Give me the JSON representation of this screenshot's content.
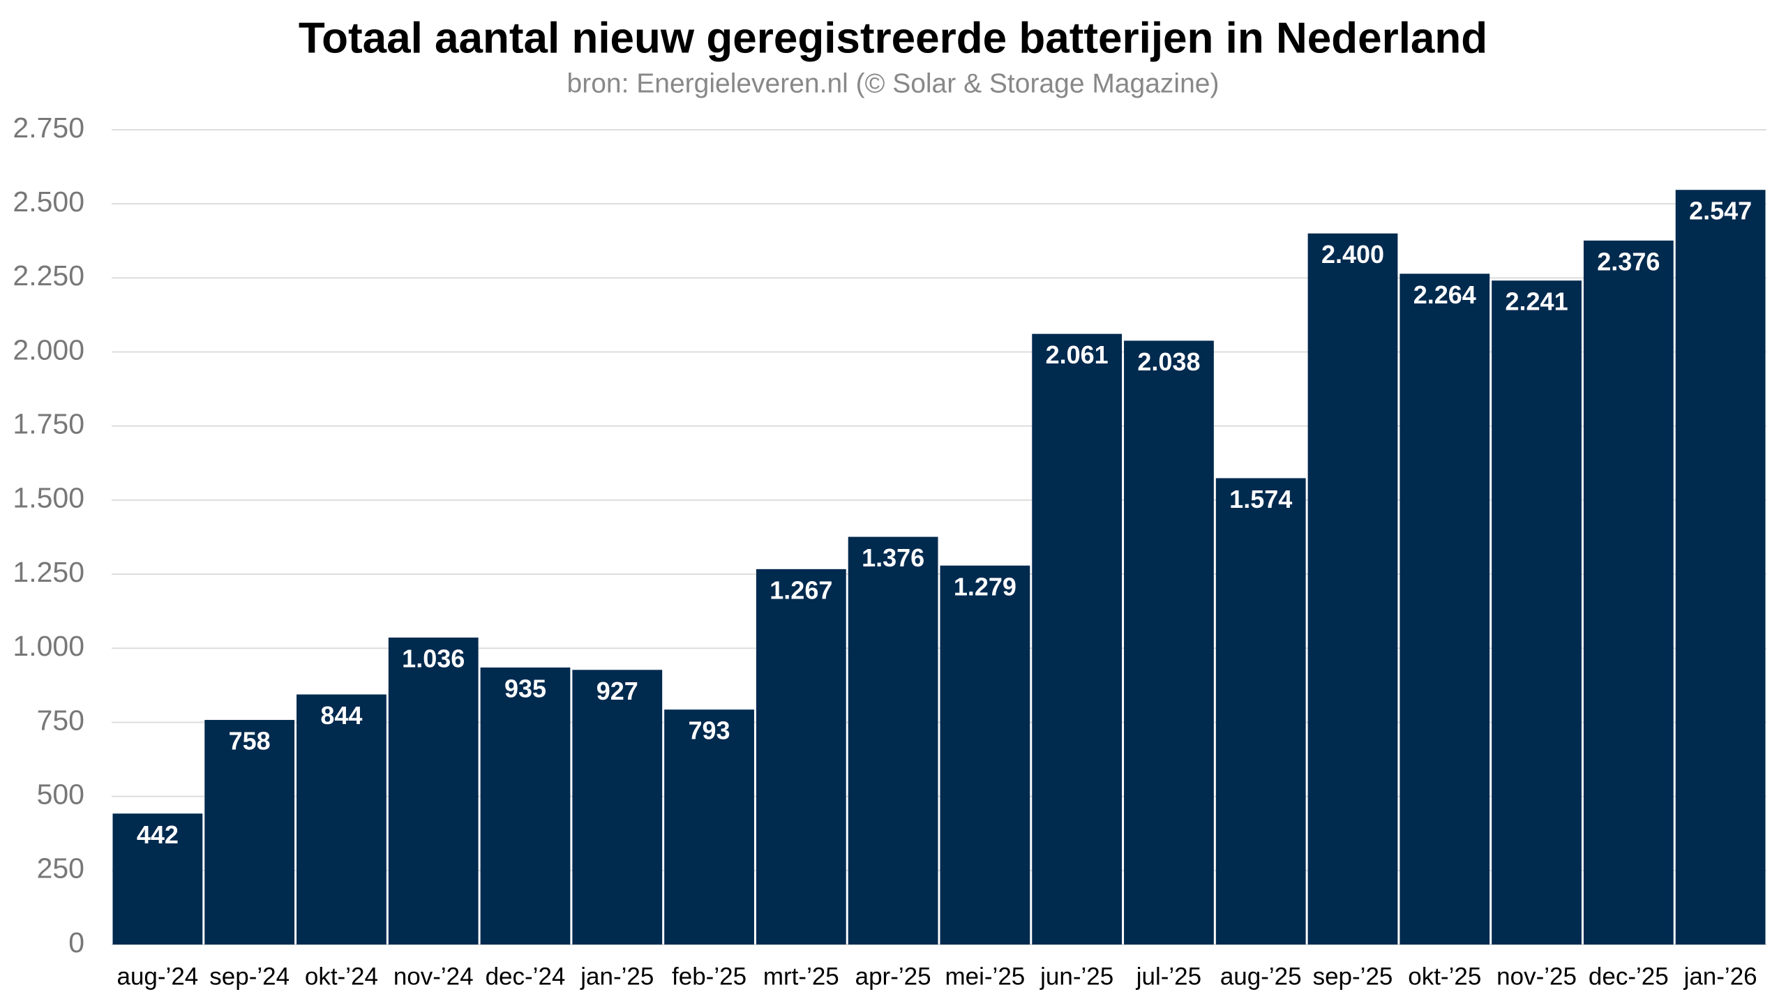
{
  "chart_data": {
    "type": "bar",
    "title": "Totaal aantal nieuw geregistreerde batterijen in Nederland",
    "subtitle": "bron: Energieleveren.nl (© Solar & Storage Magazine)",
    "categories": [
      "aug-’24",
      "sep-’24",
      "okt-’24",
      "nov-’24",
      "dec-’24",
      "jan-’25",
      "feb-’25",
      "mrt-’25",
      "apr-’25",
      "mei-’25",
      "jun-’25",
      "jul-’25",
      "aug-’25",
      "sep-’25",
      "okt-’25",
      "nov-’25",
      "dec-’25",
      "jan-’26"
    ],
    "values": [
      442,
      758,
      844,
      1036,
      935,
      927,
      793,
      1267,
      1376,
      1279,
      2061,
      2038,
      1574,
      2400,
      2264,
      2241,
      2376,
      2547
    ],
    "value_labels": [
      "442",
      "758",
      "844",
      "1.036",
      "935",
      "927",
      "793",
      "1.267",
      "1.376",
      "1.279",
      "2.061",
      "2.038",
      "1.574",
      "2.400",
      "2.264",
      "2.241",
      "2.376",
      "2.547"
    ],
    "color": "#012a4f",
    "ylim": [
      0,
      2750
    ],
    "yticks": [
      0,
      250,
      500,
      750,
      {
        "value": 1000,
        "label": "1.000"
      },
      {
        "value": 1250,
        "label": "1.250"
      },
      {
        "value": 1500,
        "label": "1.500"
      },
      {
        "value": 1750,
        "label": "1.750"
      },
      {
        "value": 2000,
        "label": "2.000"
      },
      {
        "value": 2250,
        "label": "2.250"
      },
      {
        "value": 2500,
        "label": "2.500"
      },
      {
        "value": 2750,
        "label": "2.750"
      }
    ],
    "grid": true
  }
}
